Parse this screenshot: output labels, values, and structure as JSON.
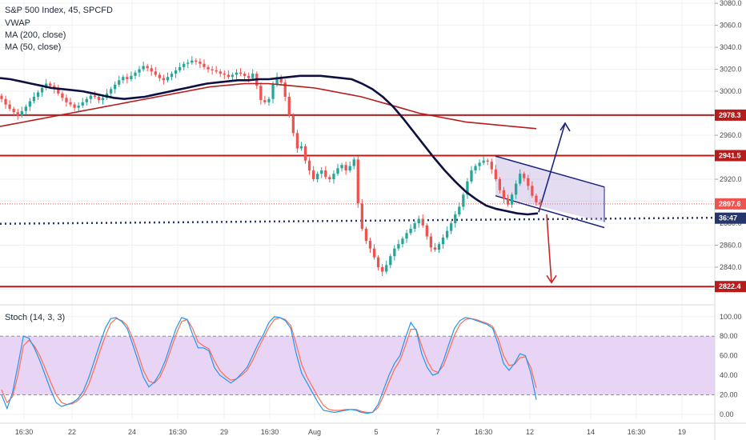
{
  "chart_data": {
    "type": "candlestick",
    "legend": {
      "title": "S&P 500 Index, 45, SPCFD",
      "lines": [
        "VWAP",
        "MA (200, close)",
        "MA (50, close)"
      ]
    },
    "price_axis": {
      "ticks": [
        "3080.0",
        "3060.0",
        "3040.0",
        "3020.0",
        "3000.0",
        "2980.0",
        "2960.0",
        "2940.0",
        "2920.0",
        "2900.0",
        "2880.0",
        "2860.0",
        "2840.0",
        "2820.0"
      ],
      "range": [
        2808,
        3083
      ]
    },
    "time_axis": {
      "labels": [
        "16:30",
        "22",
        "24",
        "16:30",
        "29",
        "16:30",
        "Aug",
        "5",
        "7",
        "16:30",
        "12",
        "14",
        "16:30",
        "19"
      ]
    },
    "levels": [
      {
        "label": "2978.3",
        "value": 2978.3,
        "color": "#b71c1c"
      },
      {
        "label": "2941.5",
        "value": 2941.5,
        "color": "#b71c1c"
      },
      {
        "label": "2822.4",
        "value": 2822.4,
        "color": "#b71c1c"
      }
    ],
    "last_price": {
      "label": "2897.6",
      "value": 2897.6,
      "color": "#ef5350"
    },
    "vwap_badge": {
      "label": "36:47",
      "value": 2884.6,
      "color": "#26366b"
    },
    "channel": {
      "color": "#b39ddb",
      "border": "#1a237e"
    },
    "arrows": [
      {
        "direction": "up",
        "from_value": 2890,
        "to_value": 2971
      },
      {
        "direction": "down",
        "from_value": 2888,
        "to_value": 2826
      }
    ],
    "candles_close": [
      2993,
      2988,
      2984,
      2981,
      2978,
      2982,
      2986,
      2991,
      2995,
      2999,
      3003,
      3007,
      3005,
      3002,
      2998,
      2994,
      2990,
      2988,
      2985,
      2987,
      2990,
      2993,
      2996,
      2995,
      2992,
      2994,
      2998,
      3002,
      3006,
      3010,
      3013,
      3011,
      3014,
      3017,
      3020,
      3023,
      3021,
      3018,
      3015,
      3012,
      3010,
      3013,
      3016,
      3019,
      3022,
      3025,
      3026,
      3028,
      3027,
      3025,
      3022,
      3020,
      3019,
      3018,
      3016,
      3015,
      3013,
      3015,
      3017,
      3016,
      3014,
      3012,
      3016,
      3005,
      2992,
      2990,
      2993,
      3006,
      3013,
      3008,
      2995,
      2978,
      2962,
      2948,
      2950,
      2937,
      2928,
      2920,
      2925,
      2928,
      2922,
      2920,
      2925,
      2930,
      2933,
      2928,
      2932,
      2938,
      2898,
      2875,
      2864,
      2857,
      2849,
      2840,
      2836,
      2842,
      2850,
      2857,
      2861,
      2866,
      2871,
      2875,
      2880,
      2884,
      2878,
      2868,
      2858,
      2856,
      2861,
      2867,
      2873,
      2880,
      2888,
      2895,
      2906,
      2918,
      2928,
      2932,
      2935,
      2937,
      2936,
      2929,
      2920,
      2910,
      2902,
      2897,
      2906,
      2916,
      2925,
      2921,
      2914,
      2905,
      2899,
      2897
    ],
    "ma50": [
      3012,
      3011,
      3009,
      3007,
      3005,
      3003,
      3002,
      3001,
      3000,
      2998,
      2996,
      2994,
      2993,
      2994,
      2995,
      2997,
      2999,
      3001,
      3003,
      3005,
      3007,
      3008,
      3009,
      3010,
      3010,
      3011,
      3011,
      3012,
      3013,
      3014,
      3014,
      3014,
      3013,
      3012,
      3011,
      3007,
      3002,
      2995,
      2986,
      2975,
      2963,
      2951,
      2939,
      2928,
      2918,
      2909,
      2902,
      2896,
      2893,
      2891,
      2889,
      2888,
      2889
    ],
    "ma200": [
      2968,
      2970,
      2972,
      2974,
      2976,
      2978,
      2980,
      2982,
      2984,
      2986,
      2988,
      2990,
      2992,
      2994,
      2996,
      2998,
      3000,
      3002,
      3004,
      3005,
      3006,
      3007,
      3007,
      3007,
      3006,
      3005,
      3004,
      3003,
      3001,
      2999,
      2997,
      2995,
      2992,
      2989,
      2986,
      2983,
      2980,
      2978,
      2976,
      2974,
      2972,
      2971,
      2970,
      2969,
      2968,
      2967,
      2966
    ],
    "stoch_axis": {
      "ticks": [
        "100.00",
        "80.00",
        "60.00",
        "40.00",
        "20.00",
        "0.00"
      ],
      "range": [
        -5,
        108
      ],
      "upper": 80,
      "lower": 20
    },
    "stoch_k": [
      20,
      6,
      22,
      50,
      80,
      78,
      68,
      55,
      40,
      25,
      12,
      8,
      10,
      12,
      16,
      24,
      38,
      55,
      72,
      88,
      98,
      99,
      95,
      88,
      72,
      55,
      38,
      28,
      33,
      42,
      55,
      72,
      88,
      99,
      97,
      82,
      68,
      68,
      65,
      48,
      40,
      36,
      32,
      36,
      42,
      48,
      60,
      72,
      82,
      94,
      100,
      99,
      96,
      88,
      62,
      42,
      32,
      22,
      12,
      4,
      3,
      2,
      3,
      4,
      5,
      4,
      2,
      1,
      2,
      10,
      25,
      40,
      52,
      60,
      78,
      94,
      86,
      62,
      48,
      40,
      42,
      55,
      72,
      88,
      96,
      99,
      98,
      96,
      94,
      92,
      88,
      72,
      52,
      45,
      52,
      62,
      60,
      42,
      15
    ],
    "stoch_d": [
      25,
      12,
      18,
      40,
      70,
      76,
      70,
      60,
      47,
      33,
      20,
      12,
      10,
      11,
      14,
      20,
      31,
      47,
      64,
      80,
      93,
      98,
      96,
      91,
      78,
      62,
      45,
      34,
      32,
      38,
      50,
      66,
      82,
      95,
      97,
      88,
      74,
      70,
      67,
      55,
      45,
      39,
      35,
      36,
      40,
      45,
      55,
      67,
      78,
      89,
      97,
      99,
      97,
      91,
      72,
      51,
      38,
      28,
      18,
      9,
      5,
      4,
      4,
      5,
      5,
      5,
      3,
      2,
      2,
      7,
      19,
      33,
      46,
      55,
      70,
      87,
      87,
      70,
      55,
      45,
      43,
      50,
      65,
      81,
      92,
      97,
      98,
      97,
      95,
      93,
      90,
      78,
      60,
      50,
      51,
      58,
      59,
      48,
      27
    ]
  }
}
